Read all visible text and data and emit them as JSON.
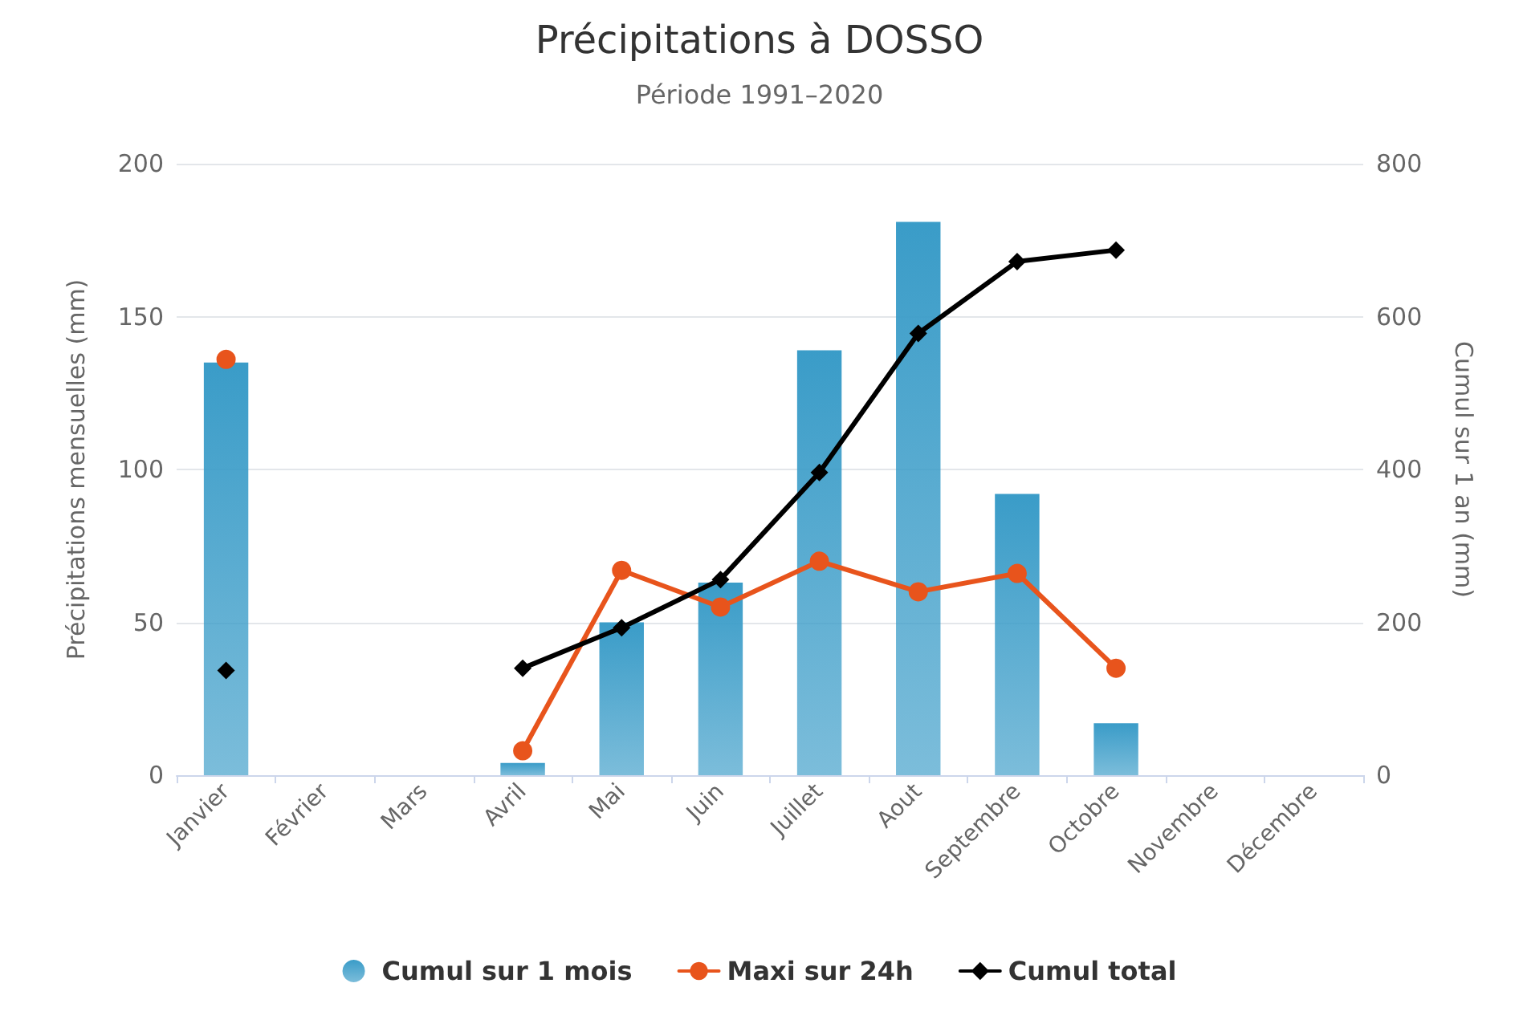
{
  "chart_data": {
    "type": "bar",
    "title": "Précipitations à DOSSO",
    "subtitle": "Période 1991–2020",
    "ylabel": "Précipitations mensuelles (mm)",
    "y2label": "Cumul sur 1 an (mm)",
    "categories": [
      "Janvier",
      "Février",
      "Mars",
      "Avril",
      "Mai",
      "Juin",
      "Juillet",
      "Aout",
      "Septembre",
      "Octobre",
      "Novembre",
      "Décembre"
    ],
    "series": [
      {
        "name": "Cumul sur 1 mois",
        "color": "#3a9cc8",
        "values": [
          135,
          null,
          null,
          4,
          50,
          63,
          139,
          181,
          92,
          17,
          null,
          null
        ]
      },
      {
        "name": "Maxi sur 24h",
        "type": "line",
        "color": "#e8541c",
        "marker": "circle",
        "values": [
          136,
          null,
          null,
          8,
          67,
          55,
          70,
          60,
          66,
          35,
          null,
          null
        ]
      },
      {
        "name": "Cumul total",
        "type": "line",
        "color": "#000000",
        "marker": "diamond",
        "axis": "y2",
        "values": [
          137,
          null,
          null,
          140,
          193,
          256,
          396,
          578,
          672,
          687,
          null,
          null
        ]
      }
    ],
    "ylim": [
      0,
      200
    ],
    "yticks": [
      0,
      50,
      100,
      150,
      200
    ],
    "y2lim": [
      0,
      800
    ],
    "y2ticks": [
      0,
      200,
      400,
      600,
      800
    ],
    "grid": "y",
    "legend": "bottom",
    "line_style": "solid"
  }
}
